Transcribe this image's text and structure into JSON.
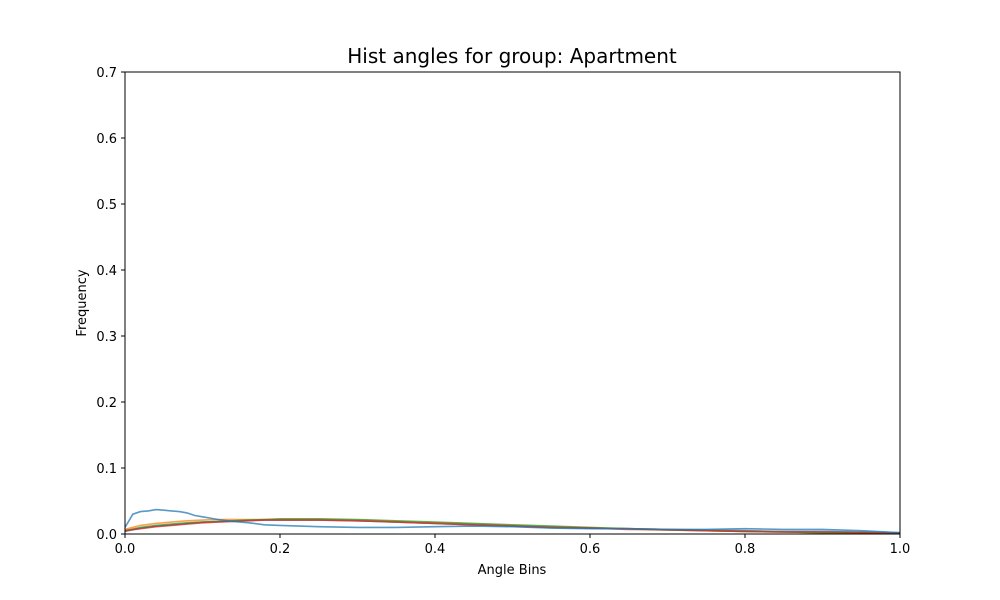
{
  "chart_data": {
    "type": "line",
    "title": "Hist angles for group: Apartment",
    "xlabel": "Angle Bins",
    "ylabel": "Frequency",
    "xlim": [
      0.0,
      1.0
    ],
    "ylim": [
      0.0,
      0.7
    ],
    "xticks": [
      "0.0",
      "0.2",
      "0.4",
      "0.6",
      "0.8",
      "1.0"
    ],
    "yticks": [
      "0.0",
      "0.1",
      "0.2",
      "0.3",
      "0.4",
      "0.5",
      "0.6",
      "0.7"
    ],
    "grid": false,
    "series": [
      {
        "color": "#1f77b4",
        "x": [
          0.0,
          0.02,
          0.04,
          0.06,
          0.08,
          0.1,
          0.12,
          0.14,
          0.16,
          0.18,
          0.2,
          0.25,
          0.3,
          0.35,
          0.4,
          0.45,
          0.5,
          0.55,
          0.6,
          0.65,
          0.7,
          0.75,
          0.8,
          0.85,
          0.9,
          0.95,
          1.0
        ],
        "values": [
          0.004,
          0.009,
          0.012,
          0.014,
          0.016,
          0.018,
          0.019,
          0.02,
          0.021,
          0.021,
          0.021,
          0.021,
          0.02,
          0.018,
          0.016,
          0.014,
          0.012,
          0.01,
          0.009,
          0.008,
          0.007,
          0.006,
          0.005,
          0.004,
          0.004,
          0.003,
          0.002
        ]
      },
      {
        "color": "#ff7f0e",
        "x": [
          0.0,
          0.02,
          0.04,
          0.06,
          0.08,
          0.1,
          0.12,
          0.14,
          0.16,
          0.18,
          0.2,
          0.25,
          0.3,
          0.35,
          0.4,
          0.45,
          0.5,
          0.55,
          0.6,
          0.65,
          0.7,
          0.75,
          0.8,
          0.85,
          0.9,
          0.95,
          1.0
        ],
        "values": [
          0.007,
          0.013,
          0.016,
          0.018,
          0.02,
          0.021,
          0.022,
          0.022,
          0.022,
          0.022,
          0.022,
          0.022,
          0.021,
          0.019,
          0.017,
          0.015,
          0.013,
          0.011,
          0.009,
          0.008,
          0.007,
          0.005,
          0.004,
          0.003,
          0.002,
          0.002,
          0.001
        ]
      },
      {
        "color": "#2ca02c",
        "x": [
          0.0,
          0.02,
          0.04,
          0.06,
          0.08,
          0.1,
          0.12,
          0.14,
          0.16,
          0.18,
          0.2,
          0.25,
          0.3,
          0.35,
          0.4,
          0.45,
          0.5,
          0.55,
          0.6,
          0.65,
          0.7,
          0.75,
          0.8,
          0.85,
          0.9,
          0.95,
          1.0
        ],
        "values": [
          0.005,
          0.01,
          0.013,
          0.015,
          0.017,
          0.018,
          0.019,
          0.02,
          0.021,
          0.022,
          0.023,
          0.023,
          0.022,
          0.02,
          0.018,
          0.016,
          0.014,
          0.012,
          0.01,
          0.008,
          0.006,
          0.005,
          0.004,
          0.003,
          0.002,
          0.002,
          0.001
        ]
      },
      {
        "color": "#d62728",
        "x": [
          0.0,
          0.02,
          0.04,
          0.06,
          0.08,
          0.1,
          0.12,
          0.14,
          0.16,
          0.18,
          0.2,
          0.25,
          0.3,
          0.35,
          0.4,
          0.45,
          0.5,
          0.55,
          0.6,
          0.65,
          0.7,
          0.75,
          0.8,
          0.85,
          0.9,
          0.95,
          1.0
        ],
        "values": [
          0.005,
          0.008,
          0.011,
          0.013,
          0.015,
          0.017,
          0.018,
          0.019,
          0.02,
          0.021,
          0.021,
          0.021,
          0.02,
          0.018,
          0.016,
          0.014,
          0.012,
          0.01,
          0.009,
          0.007,
          0.006,
          0.005,
          0.004,
          0.003,
          0.003,
          0.002,
          0.001
        ]
      },
      {
        "color": "#1f77b4",
        "x": [
          0.0,
          0.01,
          0.02,
          0.03,
          0.04,
          0.05,
          0.06,
          0.07,
          0.08,
          0.09,
          0.1,
          0.12,
          0.14,
          0.16,
          0.18,
          0.2,
          0.25,
          0.3,
          0.35,
          0.4,
          0.45,
          0.5,
          0.55,
          0.6,
          0.65,
          0.7,
          0.75,
          0.8,
          0.85,
          0.9,
          0.95,
          1.0
        ],
        "values": [
          0.01,
          0.03,
          0.034,
          0.035,
          0.037,
          0.036,
          0.035,
          0.034,
          0.032,
          0.028,
          0.026,
          0.022,
          0.019,
          0.017,
          0.014,
          0.013,
          0.011,
          0.01,
          0.01,
          0.011,
          0.012,
          0.011,
          0.009,
          0.008,
          0.008,
          0.007,
          0.007,
          0.008,
          0.007,
          0.007,
          0.005,
          0.002
        ]
      }
    ]
  }
}
